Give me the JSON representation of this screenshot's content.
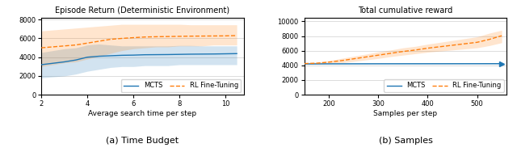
{
  "chart_data": [
    {
      "type": "line",
      "title": "Episode Return (Deterministic Environment)",
      "xlabel": "Average search time per step",
      "caption": "(a) Time Budget",
      "xlim": [
        2,
        10.8
      ],
      "ylim": [
        0,
        8200
      ],
      "xticks": [
        2,
        4,
        6,
        8,
        10
      ],
      "yticks": [
        0,
        2000,
        4000,
        6000,
        8000
      ],
      "grid": true,
      "legend": "lower right",
      "series": [
        {
          "name": "MCTS",
          "color": "#1f77b4",
          "line_style": "solid",
          "x": [
            2.0,
            2.5,
            3.0,
            3.5,
            4.0,
            4.5,
            5.0,
            5.5,
            6.0,
            6.5,
            7.0,
            7.5,
            8.0,
            8.5,
            9.0,
            9.5,
            10.0,
            10.5
          ],
          "values": [
            3200,
            3350,
            3500,
            3700,
            4000,
            4100,
            4150,
            4200,
            4220,
            4260,
            4270,
            4280,
            4300,
            4320,
            4330,
            4340,
            4360,
            4380
          ],
          "lower": [
            1800,
            1900,
            2000,
            2200,
            2500,
            2700,
            2900,
            3000,
            3000,
            3100,
            3100,
            3100,
            3200,
            3200,
            3200,
            3200,
            3200,
            3200
          ],
          "upper": [
            4500,
            4700,
            4900,
            5000,
            5300,
            5400,
            5300,
            5200,
            5200,
            5200,
            5200,
            5200,
            5250,
            5250,
            5200,
            5200,
            5200,
            5200
          ]
        },
        {
          "name": "RL Fine-Tuning",
          "color": "#ff7f0e",
          "line_style": "dashed",
          "x": [
            2.0,
            2.5,
            3.0,
            3.5,
            4.0,
            4.5,
            5.0,
            5.5,
            6.0,
            6.5,
            7.0,
            7.5,
            8.0,
            8.5,
            9.0,
            9.5,
            10.0,
            10.5
          ],
          "values": [
            5000,
            5100,
            5200,
            5300,
            5500,
            5700,
            5900,
            6000,
            6080,
            6150,
            6180,
            6200,
            6220,
            6240,
            6250,
            6260,
            6270,
            6300
          ],
          "lower": [
            3000,
            3200,
            3400,
            3500,
            3800,
            4100,
            4400,
            4700,
            4900,
            5000,
            5100,
            5100,
            5200,
            5200,
            5200,
            5300,
            5300,
            5300
          ],
          "upper": [
            6800,
            6900,
            7000,
            7100,
            7200,
            7300,
            7400,
            7500,
            7500,
            7500,
            7500,
            7500,
            7500,
            7450,
            7450,
            7450,
            7450,
            7450
          ]
        }
      ]
    },
    {
      "type": "line",
      "title": "Total cumulative reward",
      "xlabel": "Samples per step",
      "caption": "(b) Samples",
      "xlim": [
        150,
        560
      ],
      "ylim": [
        0,
        10500
      ],
      "xticks": [
        200,
        300,
        400,
        500
      ],
      "yticks": [
        0,
        2000,
        4000,
        6000,
        8000,
        10000
      ],
      "grid": true,
      "legend": "lower right",
      "series": [
        {
          "name": "MCTS",
          "color": "#1f77b4",
          "line_style": "solid",
          "x": [
            150,
            200,
            250,
            300,
            350,
            400,
            450,
            500,
            550
          ],
          "values": [
            4200,
            4215,
            4220,
            4225,
            4228,
            4230,
            4232,
            4235,
            4240
          ],
          "lower": [
            4150,
            4160,
            4160,
            4165,
            4165,
            4170,
            4170,
            4175,
            4175
          ],
          "upper": [
            4255,
            4265,
            4275,
            4280,
            4285,
            4285,
            4290,
            4290,
            4295
          ]
        },
        {
          "name": "RL Fine-Tuning",
          "color": "#ff7f0e",
          "line_style": "dashed",
          "x": [
            150,
            175,
            200,
            225,
            250,
            275,
            300,
            325,
            350,
            375,
            400,
            425,
            450,
            475,
            500,
            525,
            550
          ],
          "values": [
            4250,
            4300,
            4450,
            4650,
            4900,
            5150,
            5400,
            5650,
            5900,
            6100,
            6350,
            6550,
            6750,
            6950,
            7150,
            7550,
            8050
          ],
          "lower": [
            4150,
            4200,
            4250,
            4350,
            4550,
            4750,
            4950,
            5200,
            5400,
            5600,
            5800,
            5950,
            6100,
            6250,
            6400,
            6700,
            7100
          ],
          "upper": [
            4380,
            4420,
            4650,
            4960,
            5250,
            5540,
            5850,
            6100,
            6400,
            6600,
            6900,
            7150,
            7400,
            7650,
            7900,
            8400,
            8800
          ]
        },
        {
          "type": "scatter",
          "color": "#1f77b4",
          "marker": "triangle_right",
          "x": [
            550
          ],
          "values": [
            4240
          ]
        }
      ]
    }
  ]
}
